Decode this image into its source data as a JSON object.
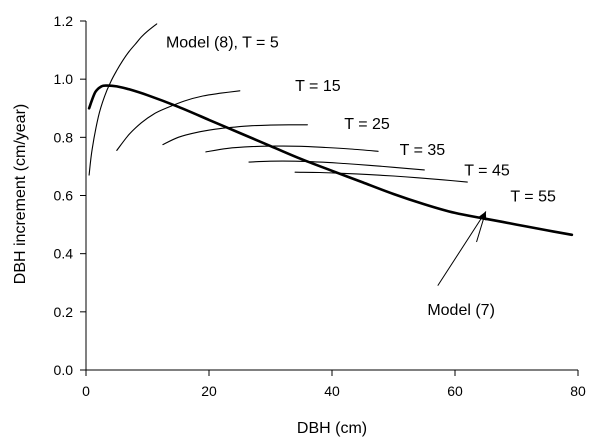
{
  "chart_data": {
    "type": "line",
    "xlabel": "DBH (cm)",
    "ylabel": "DBH increment (cm/year)",
    "xlim": [
      0,
      80
    ],
    "ylim": [
      0.0,
      1.2
    ],
    "xticks": [
      "0",
      "20",
      "40",
      "60",
      "80"
    ],
    "yticks": [
      "0.0",
      "0.2",
      "0.4",
      "0.6",
      "0.8",
      "1.0",
      "1.2"
    ],
    "grid": false,
    "series": [
      {
        "name": "Model (7)",
        "style": "thick",
        "x": [
          0.5,
          1.5,
          2.5,
          3.5,
          5,
          7,
          10,
          15,
          20,
          25,
          30,
          35,
          40,
          45,
          50,
          55,
          60,
          65,
          70,
          75,
          79
        ],
        "y": [
          0.9,
          0.955,
          0.975,
          0.978,
          0.975,
          0.965,
          0.945,
          0.905,
          0.86,
          0.815,
          0.77,
          0.725,
          0.685,
          0.645,
          0.605,
          0.57,
          0.54,
          0.52,
          0.5,
          0.48,
          0.465
        ]
      },
      {
        "name": "T = 5",
        "style": "thin",
        "x": [
          0.5,
          1,
          2,
          3,
          4,
          5,
          6,
          7,
          8,
          9,
          10,
          11.5
        ],
        "y": [
          0.67,
          0.76,
          0.87,
          0.94,
          0.99,
          1.03,
          1.065,
          1.095,
          1.12,
          1.145,
          1.165,
          1.19
        ]
      },
      {
        "name": "T = 15",
        "style": "thin",
        "x": [
          5,
          7,
          9,
          11,
          13,
          16,
          19,
          22,
          25
        ],
        "y": [
          0.755,
          0.81,
          0.85,
          0.88,
          0.9,
          0.925,
          0.942,
          0.952,
          0.96
        ]
      },
      {
        "name": "T = 25",
        "style": "thin",
        "x": [
          12.5,
          15,
          18,
          21,
          24,
          27,
          30,
          33,
          36
        ],
        "y": [
          0.775,
          0.8,
          0.817,
          0.828,
          0.835,
          0.84,
          0.842,
          0.843,
          0.843
        ]
      },
      {
        "name": "T = 35",
        "style": "thin",
        "x": [
          19.5,
          23,
          27,
          31,
          35,
          39,
          43,
          47.5
        ],
        "y": [
          0.75,
          0.762,
          0.768,
          0.77,
          0.769,
          0.765,
          0.76,
          0.752
        ]
      },
      {
        "name": "T = 45",
        "style": "thin",
        "x": [
          26.5,
          30,
          34,
          38,
          42,
          46,
          50,
          55
        ],
        "y": [
          0.715,
          0.718,
          0.718,
          0.715,
          0.71,
          0.704,
          0.697,
          0.688
        ]
      },
      {
        "name": "T = 55",
        "style": "thin",
        "x": [
          34,
          38,
          42,
          46,
          50,
          54,
          58,
          62
        ],
        "y": [
          0.68,
          0.679,
          0.676,
          0.672,
          0.667,
          0.661,
          0.654,
          0.646
        ]
      }
    ],
    "annotations": [
      {
        "text": "Model (8), T = 5",
        "x": 13,
        "y": 1.13
      },
      {
        "text": "T = 15",
        "x": 34,
        "y": 0.98
      },
      {
        "text": "T = 25",
        "x": 42,
        "y": 0.85
      },
      {
        "text": "T = 35",
        "x": 51,
        "y": 0.76
      },
      {
        "text": "T = 45",
        "x": 61.5,
        "y": 0.69
      },
      {
        "text": "T = 55",
        "x": 69,
        "y": 0.6
      },
      {
        "text": "Model (7)",
        "x": 55.5,
        "y": 0.21
      }
    ],
    "arrows": [
      {
        "from": [
          57.2,
          0.29
        ],
        "to": [
          65,
          0.545
        ]
      },
      {
        "from": [
          63.5,
          0.44
        ],
        "to": [
          65,
          0.545
        ]
      }
    ]
  }
}
